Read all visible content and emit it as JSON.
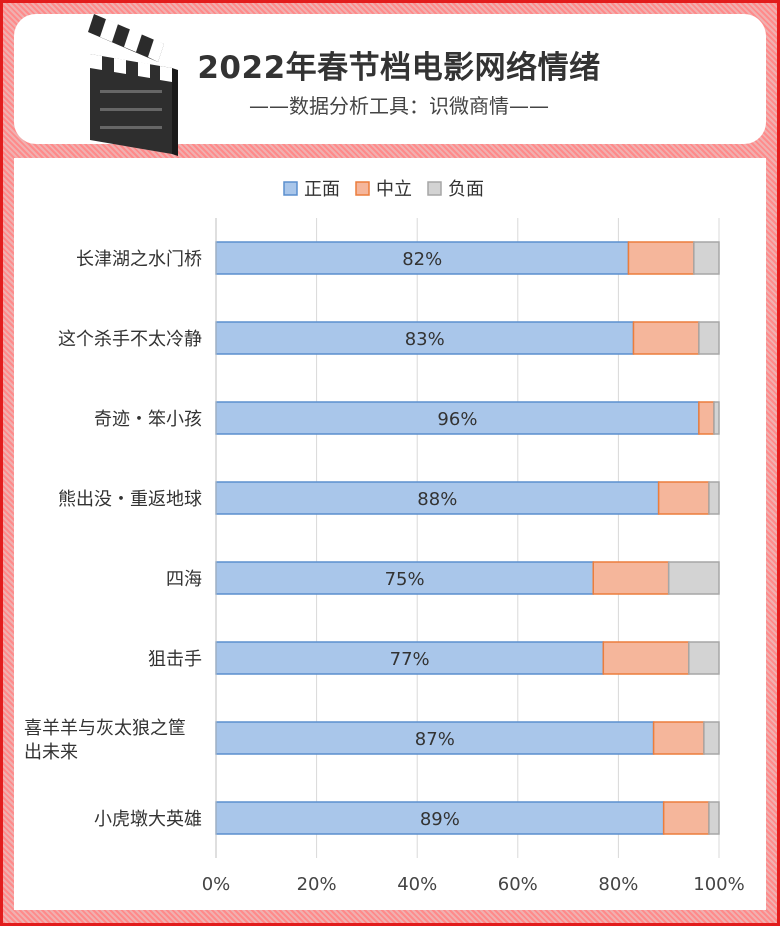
{
  "header": {
    "title": "2022年春节档电影网络情绪",
    "subtitle": "——数据分析工具：识微商情——"
  },
  "colors": {
    "positive_fill": "#a9c6ea",
    "positive_stroke": "#5b8fce",
    "neutral_fill": "#f5b69b",
    "neutral_stroke": "#ec7d3c",
    "negative_fill": "#d3d3d3",
    "negative_stroke": "#a6a6a6"
  },
  "chart_data": {
    "type": "bar",
    "orientation": "horizontal",
    "stacked": "percent",
    "categories": [
      [
        "长津湖之水门桥"
      ],
      [
        "这个杀手不太冷静"
      ],
      [
        "奇迹・笨小孩"
      ],
      [
        "熊出没・重返地球"
      ],
      [
        "四海"
      ],
      [
        "狙击手"
      ],
      [
        "喜羊羊与灰太狼之筐",
        "出未来"
      ],
      [
        "小虎墩大英雄"
      ]
    ],
    "series": [
      {
        "name": "正面",
        "values": [
          82,
          83,
          96,
          88,
          75,
          77,
          87,
          89
        ]
      },
      {
        "name": "中立",
        "values": [
          13,
          13,
          3,
          10,
          15,
          17,
          10,
          9
        ]
      },
      {
        "name": "负面",
        "values": [
          5,
          4,
          1,
          2,
          10,
          6,
          3,
          2
        ]
      }
    ],
    "data_labels": [
      "82%",
      "83%",
      "96%",
      "88%",
      "75%",
      "77%",
      "87%",
      "89%"
    ],
    "x_ticks": [
      "0%",
      "20%",
      "40%",
      "60%",
      "80%",
      "100%"
    ],
    "xlim": [
      0,
      100
    ],
    "grid": "vertical",
    "legend": "top-center"
  }
}
